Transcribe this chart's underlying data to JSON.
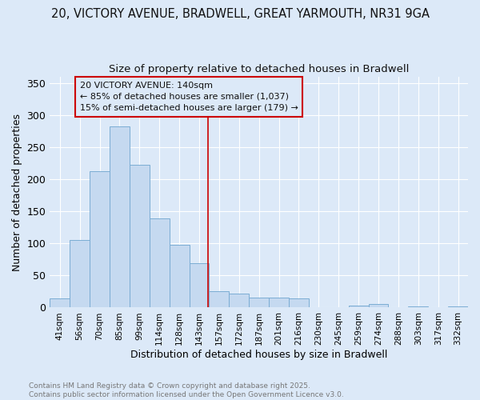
{
  "title_line1": "20, VICTORY AVENUE, BRADWELL, GREAT YARMOUTH, NR31 9GA",
  "title_line2": "Size of property relative to detached houses in Bradwell",
  "xlabel": "Distribution of detached houses by size in Bradwell",
  "ylabel": "Number of detached properties",
  "bar_color": "#c5d9f0",
  "bar_edge_color": "#7badd4",
  "background_color": "#dce9f8",
  "grid_color": "#ffffff",
  "categories": [
    "41sqm",
    "56sqm",
    "70sqm",
    "85sqm",
    "99sqm",
    "114sqm",
    "128sqm",
    "143sqm",
    "157sqm",
    "172sqm",
    "187sqm",
    "201sqm",
    "216sqm",
    "230sqm",
    "245sqm",
    "259sqm",
    "274sqm",
    "288sqm",
    "303sqm",
    "317sqm",
    "332sqm"
  ],
  "values": [
    14,
    105,
    212,
    282,
    222,
    139,
    98,
    69,
    25,
    22,
    15,
    15,
    14,
    1,
    0,
    3,
    5,
    1,
    2,
    1,
    2
  ],
  "property_label": "20 VICTORY AVENUE: 140sqm",
  "annotation_line2": "← 85% of detached houses are smaller (1,037)",
  "annotation_line3": "15% of semi-detached houses are larger (179) →",
  "vline_x_index": 7.45,
  "ylim": [
    0,
    360
  ],
  "yticks": [
    0,
    50,
    100,
    150,
    200,
    250,
    300,
    350
  ],
  "footnote": "Contains HM Land Registry data © Crown copyright and database right 2025.\nContains public sector information licensed under the Open Government Licence v3.0.",
  "footnote_color": "#777777",
  "title_color": "#111111",
  "vline_color": "#cc0000",
  "annotation_box_edge_color": "#cc0000",
  "annotation_text_color": "#111111",
  "annotation_bg_color": "#dce9f8"
}
